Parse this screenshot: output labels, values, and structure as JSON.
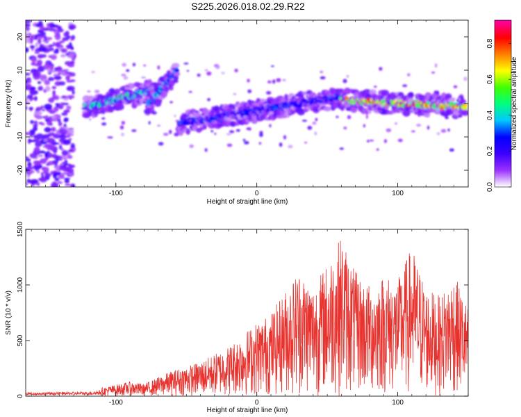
{
  "title": "S225.2026.018.02.29.R22",
  "chart_data": [
    {
      "type": "heatmap",
      "title": "S225.2026.018.02.29.R22",
      "xlabel": "Height of straight line (km)",
      "ylabel": "Frequency (Hz)",
      "xlim": [
        -164,
        150
      ],
      "ylim": [
        -25,
        25
      ],
      "x_ticks": [
        -100,
        0,
        100
      ],
      "y_ticks": [
        -20,
        -10,
        0,
        10,
        20
      ],
      "colorbar": {
        "label": "Normalized spectral amplitude",
        "range": [
          0.0,
          0.93
        ],
        "ticks": [
          "0.0",
          "0.2",
          "0.4",
          "0.6",
          "0.8"
        ],
        "colors": [
          "#ffffff",
          "#9a30ff",
          "#3b00ff",
          "#0000ff",
          "#00c8ff",
          "#00ff80",
          "#40ff00",
          "#ffff00",
          "#ff8000",
          "#ff0000",
          "#ff00a0"
        ]
      },
      "ridges": [
        {
          "name": "noise-band",
          "x": [
            -164,
            -130
          ],
          "freq": [
            -25,
            25
          ],
          "level": 0.15
        },
        {
          "name": "segment-1",
          "x": [
            -122,
            -72
          ],
          "freq": [
            -1,
            4
          ],
          "level": 0.45
        },
        {
          "name": "segment-2",
          "x": [
            -78,
            -56
          ],
          "freq": [
            -1,
            10
          ],
          "level": 0.4
        },
        {
          "name": "segment-3",
          "x": [
            -55,
            60
          ],
          "freq": [
            -6,
            2
          ],
          "level": 0.3
        },
        {
          "name": "segment-4",
          "x": [
            60,
            148
          ],
          "freq": [
            1,
            -1
          ],
          "level": 0.75
        }
      ]
    },
    {
      "type": "line",
      "xlabel": "Height of straight line (km)",
      "ylabel": "SNR (10 * v/v)",
      "xlim": [
        -164,
        150
      ],
      "ylim": [
        0,
        1500
      ],
      "x_ticks": [
        -100,
        0,
        100
      ],
      "y_ticks": [
        0,
        500,
        1000,
        1500
      ],
      "color": "#e8322e",
      "envelope": {
        "x": [
          -164,
          -120,
          -90,
          -80,
          -60,
          -40,
          -20,
          0,
          10,
          20,
          30,
          40,
          50,
          60,
          70,
          80,
          90,
          100,
          110,
          120,
          130,
          140,
          150
        ],
        "max": [
          40,
          50,
          130,
          110,
          230,
          310,
          450,
          670,
          750,
          950,
          1150,
          1000,
          1200,
          1450,
          1120,
          1000,
          1100,
          1050,
          1350,
          980,
          900,
          1100,
          800
        ]
      }
    }
  ]
}
